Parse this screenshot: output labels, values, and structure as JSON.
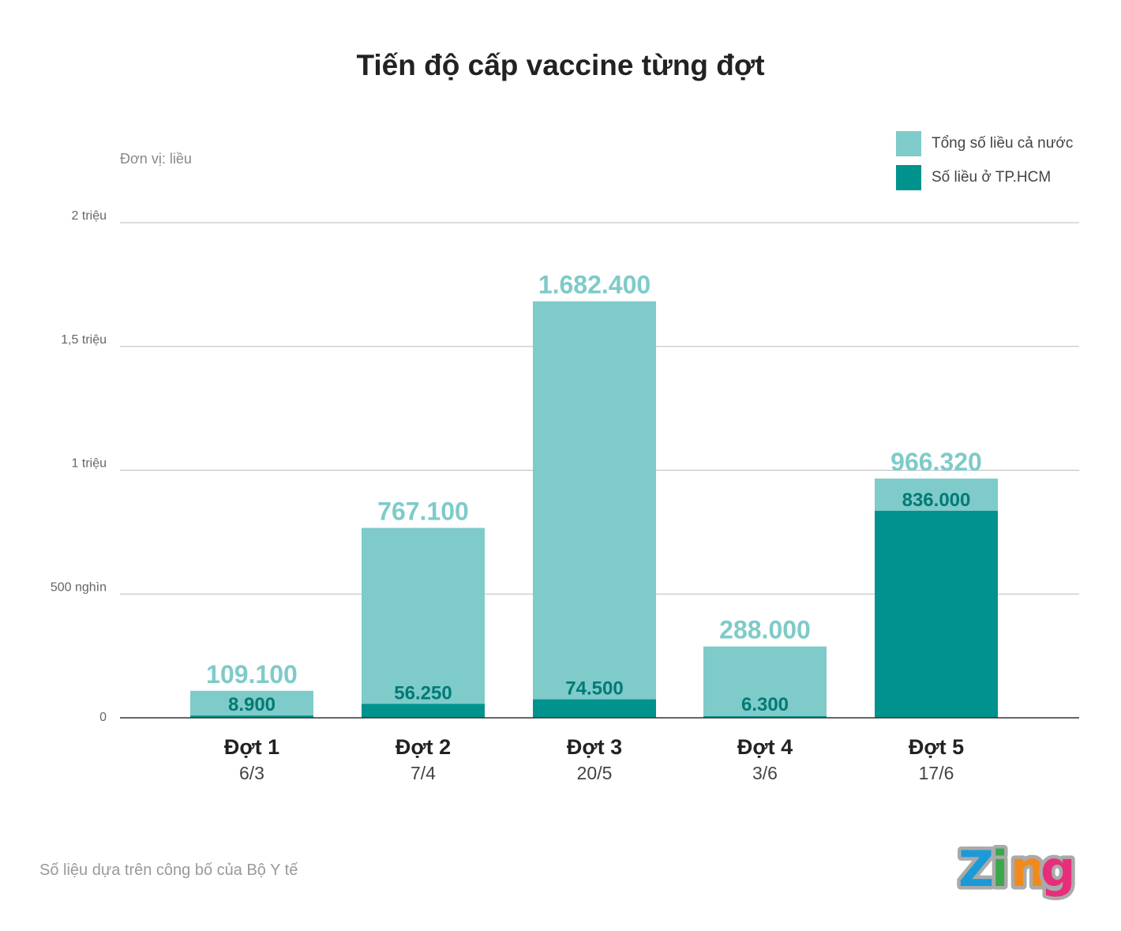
{
  "chart_data": {
    "type": "bar",
    "stacking": "overlay",
    "title": "Tiến độ cấp vaccine từng đợt",
    "unit_label": "Đơn vị: liều",
    "categories": [
      "Đợt 1",
      "Đợt 2",
      "Đợt 3",
      "Đợt 4",
      "Đợt 5"
    ],
    "category_dates": [
      "6/3",
      "7/4",
      "20/5",
      "3/6",
      "17/6"
    ],
    "series": [
      {
        "name": "Tổng số liều cả nước",
        "color": "#7ecbc9",
        "values": [
          109100,
          767100,
          1682400,
          288000,
          966320
        ],
        "labels": [
          "109.100",
          "767.100",
          "1.682.400",
          "288.000",
          "966.320"
        ]
      },
      {
        "name": "Số liều ở TP.HCM",
        "color": "#00938e",
        "values": [
          8900,
          56250,
          74500,
          6300,
          836000
        ],
        "labels": [
          "8.900",
          "56.250",
          "74.500",
          "6.300",
          "836.000"
        ]
      }
    ],
    "ylim": [
      0,
      2000000
    ],
    "yticks": [
      0,
      500000,
      1000000,
      1500000,
      2000000
    ],
    "ytick_labels": [
      "0",
      "500 nghìn",
      "1 triệu",
      "1,5 triệu",
      "2 triệu"
    ],
    "grid": true,
    "legend_position": "top-right"
  },
  "footer": {
    "source": "Số liệu dựa trên công bố của Bộ Y tế",
    "logo": "Zing"
  }
}
